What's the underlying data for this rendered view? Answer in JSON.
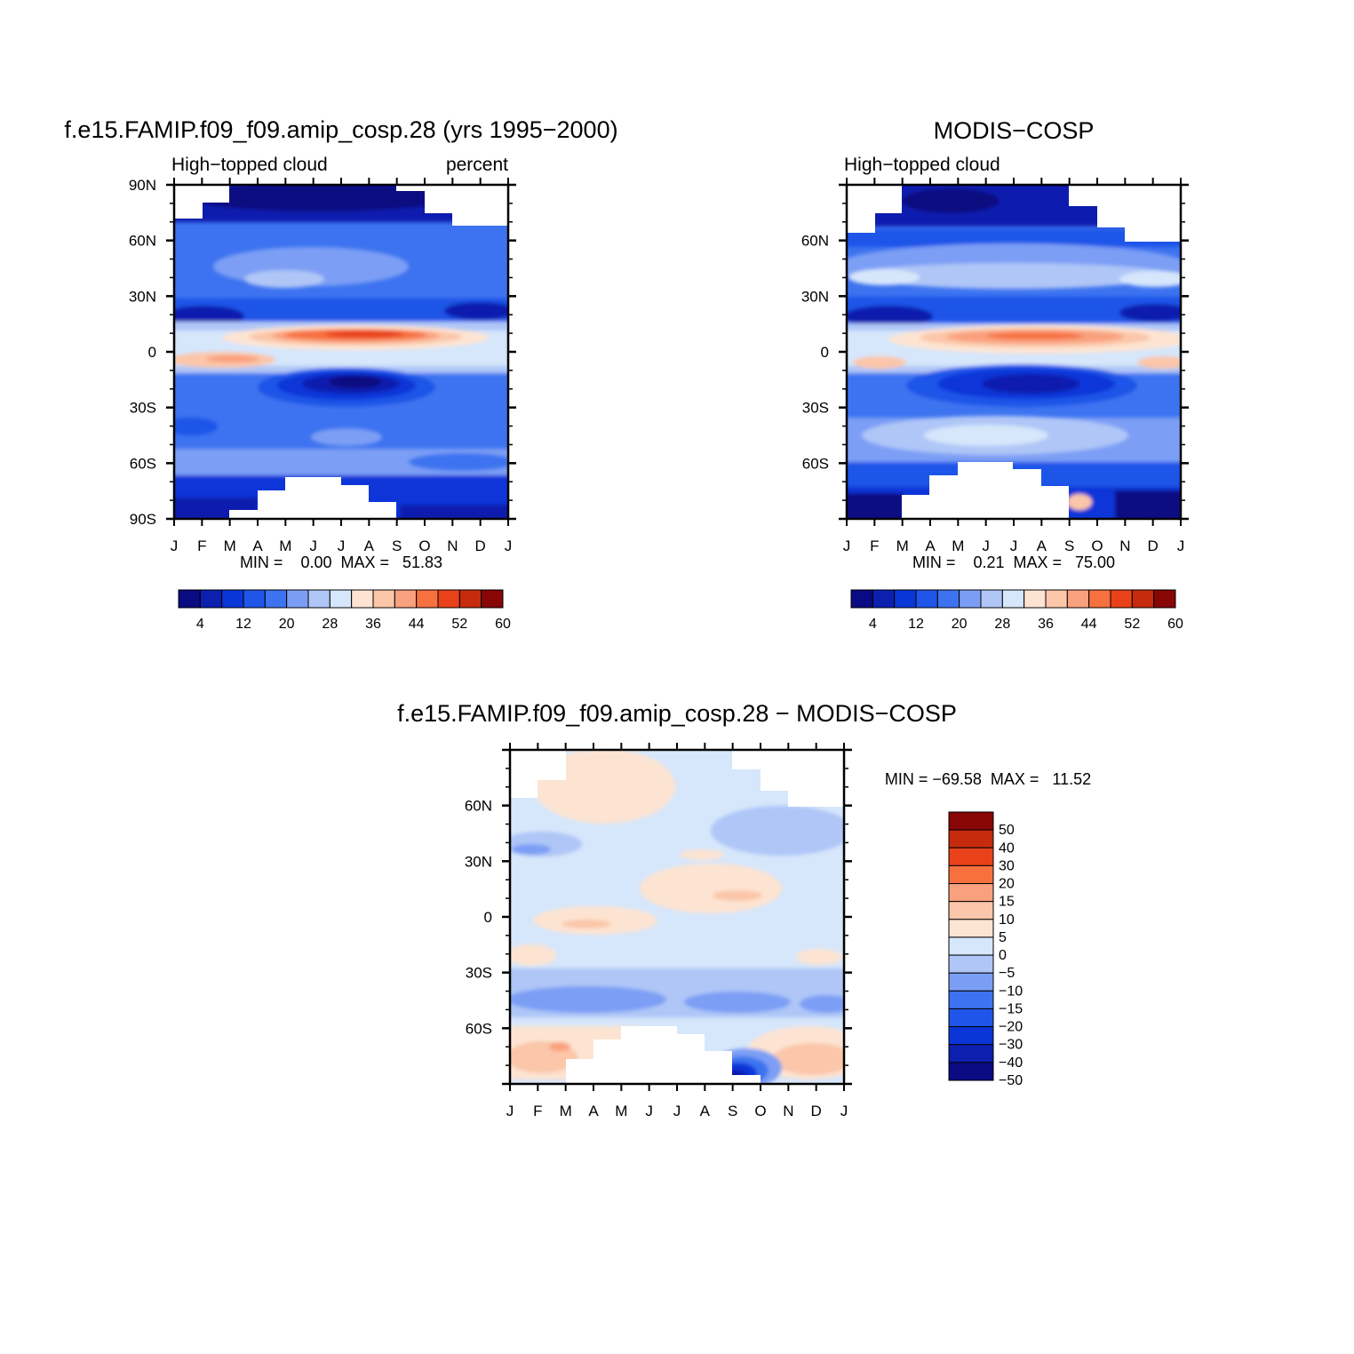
{
  "palette": {
    "seq": [
      "#0a0a82",
      "#0c1fae",
      "#0a36d8",
      "#1f55e8",
      "#3d73f0",
      "#7b9ef5",
      "#afc6f7",
      "#d6e6fb",
      "#fde4d2",
      "#fbc6a9",
      "#f9a07e",
      "#f7713f",
      "#e9421a",
      "#c62b0e",
      "#880606"
    ],
    "diff": [
      "#0a0a82",
      "#0c1fae",
      "#0a36d8",
      "#1f55e8",
      "#3d73f0",
      "#7b9ef5",
      "#afc6f7",
      "#d6e6fb",
      "#fde4d2",
      "#fbc6a9",
      "#f9a07e",
      "#f7713f",
      "#e9421a",
      "#c62b0e",
      "#880606"
    ]
  },
  "months": [
    "J",
    "F",
    "M",
    "A",
    "M",
    "J",
    "J",
    "A",
    "S",
    "O",
    "N",
    "D",
    "J"
  ],
  "panels": [
    {
      "title": "f.e15.FAMIP.f09_f09.amip_cosp.28 (yrs 1995−2000)",
      "left_label": "High−topped cloud",
      "right_label": "percent",
      "stats": "MIN =    0.00  MAX =   51.83",
      "lat_ticks": [
        "90N",
        "60N",
        "30N",
        "0",
        "30S",
        "60S",
        "90S"
      ]
    },
    {
      "title": "MODIS−COSP",
      "left_label": "High−topped cloud",
      "right_label": "",
      "stats": "MIN =    0.21  MAX =   75.00",
      "lat_ticks": [
        "60N",
        "30N",
        "0",
        "30S",
        "60S"
      ]
    },
    {
      "title": "f.e15.FAMIP.f09_f09.amip_cosp.28 − MODIS−COSP",
      "left_label": "",
      "right_label": "",
      "stats": "MIN = −69.58  MAX =   11.52",
      "lat_ticks": [
        "60N",
        "30N",
        "0",
        "30S",
        "60S"
      ]
    }
  ],
  "colorbar_seq_labels": [
    "4",
    "12",
    "20",
    "28",
    "36",
    "44",
    "52",
    "60"
  ],
  "colorbar_diff_labels": [
    "50",
    "40",
    "30",
    "20",
    "15",
    "10",
    "5",
    "0",
    "−5",
    "−10",
    "−15",
    "−20",
    "−30",
    "−40",
    "−50"
  ],
  "chart_data": [
    {
      "type": "heatmap",
      "title": "f.e15.FAMIP.f09_f09.amip_cosp.28 (yrs 1995−2000)",
      "variable": "High−topped cloud",
      "units": "percent",
      "x": [
        "J",
        "F",
        "M",
        "A",
        "M",
        "J",
        "J",
        "A",
        "S",
        "O",
        "N",
        "D",
        "J"
      ],
      "y": [
        90,
        60,
        30,
        0,
        -30,
        -60,
        -90
      ],
      "ylabel_ticks": [
        "90N",
        "60N",
        "30N",
        "0",
        "30S",
        "60S",
        "90S"
      ],
      "levels": [
        4,
        8,
        12,
        16,
        20,
        24,
        28,
        32,
        36,
        40,
        44,
        48,
        52,
        56,
        60
      ],
      "min": 0.0,
      "max": 51.83,
      "features": [
        {
          "name": "ITCZ maximum",
          "lat": 10,
          "months": "Jan-Dec",
          "approx_value": 48
        },
        {
          "name": "southern subtropical minimum",
          "lat": -17,
          "months": "May-Aug",
          "approx_value": 2
        },
        {
          "name": "northern subtropical minimum",
          "lat": 20,
          "months": "Dec-Mar",
          "approx_value": 8
        }
      ]
    },
    {
      "type": "heatmap",
      "title": "MODIS−COSP",
      "variable": "High−topped cloud",
      "x": [
        "J",
        "F",
        "M",
        "A",
        "M",
        "J",
        "J",
        "A",
        "S",
        "O",
        "N",
        "D",
        "J"
      ],
      "y": [
        60,
        30,
        0,
        -30,
        -60
      ],
      "levels": [
        4,
        8,
        12,
        16,
        20,
        24,
        28,
        32,
        36,
        40,
        44,
        48,
        52,
        56,
        60
      ],
      "min": 0.21,
      "max": 75.0,
      "features": [
        {
          "name": "ITCZ maximum",
          "lat": 8,
          "months": "Apr-Oct",
          "approx_value": 44
        },
        {
          "name": "southern subtropical minimum",
          "lat": -17,
          "months": "May-Aug",
          "approx_value": 4
        },
        {
          "name": "Antarctic minimum",
          "lat": -82,
          "months": "Jan, Oct-Dec",
          "approx_value": 3
        }
      ]
    },
    {
      "type": "heatmap",
      "title": "f.e15.FAMIP.f09_f09.amip_cosp.28 − MODIS−COSP",
      "x": [
        "J",
        "F",
        "M",
        "A",
        "M",
        "J",
        "J",
        "A",
        "S",
        "O",
        "N",
        "D",
        "J"
      ],
      "y": [
        60,
        30,
        0,
        -30,
        -60
      ],
      "levels": [
        -50,
        -40,
        -30,
        -20,
        -15,
        -10,
        -5,
        0,
        5,
        10,
        15,
        20,
        30,
        40,
        50
      ],
      "min": -69.58,
      "max": 11.52,
      "features": [
        {
          "name": "positive anomaly",
          "lat": 10,
          "months": "Jun-Sep",
          "approx_value": 8
        },
        {
          "name": "Antarctic negative anomaly",
          "lat": -82,
          "months": "Sep-Oct",
          "approx_value": -60
        },
        {
          "name": "southern mid-latitude negative band",
          "lat": -45,
          "months": "Jan-Dec",
          "approx_value": -12
        }
      ]
    }
  ]
}
